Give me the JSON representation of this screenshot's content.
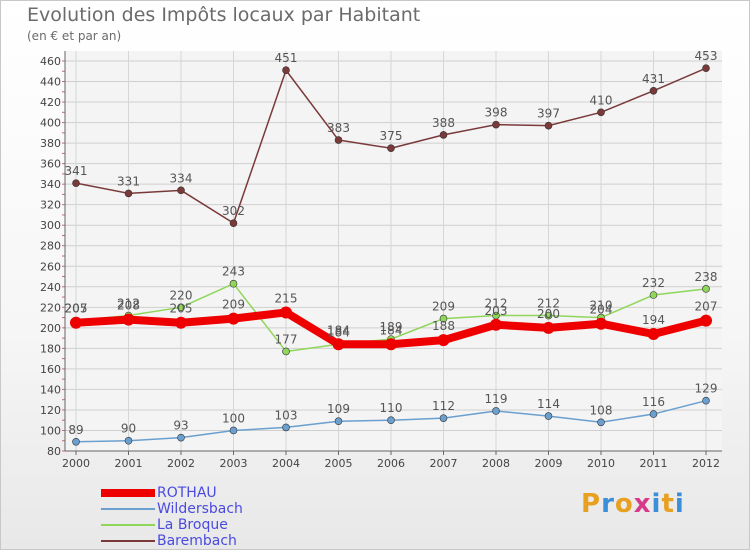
{
  "title": "Evolution des Impôts locaux par Habitant",
  "subtitle": "(en € et par an)",
  "logo_text": "Proxiti",
  "chart_data": {
    "type": "line",
    "categories": [
      "2000",
      "2001",
      "2002",
      "2003",
      "2004",
      "2005",
      "2006",
      "2007",
      "2008",
      "2009",
      "2010",
      "2011",
      "2012"
    ],
    "ylim": [
      80,
      460
    ],
    "yticks": [
      80,
      100,
      120,
      140,
      160,
      180,
      200,
      220,
      240,
      260,
      280,
      300,
      320,
      340,
      360,
      380,
      400,
      420,
      440,
      460
    ],
    "grid": true,
    "legend_placement": "bottom-left",
    "series": [
      {
        "name": "ROTHAU",
        "color": "#ee0000",
        "values": [
          205,
          208,
          205,
          209,
          215,
          184,
          184,
          188,
          203,
          200,
          204,
          194,
          207
        ]
      },
      {
        "name": "Wildersbach",
        "color": "#6a9fcf",
        "values": [
          89,
          90,
          93,
          100,
          103,
          109,
          110,
          112,
          119,
          114,
          108,
          116,
          129
        ]
      },
      {
        "name": "La Broque",
        "color": "#8fd65a",
        "values": [
          207,
          212,
          220,
          243,
          177,
          184,
          189,
          209,
          212,
          212,
          210,
          232,
          238
        ]
      },
      {
        "name": "Barembach",
        "color": "#7a3a3a",
        "values": [
          341,
          331,
          334,
          302,
          451,
          383,
          375,
          388,
          398,
          397,
          410,
          431,
          453
        ]
      }
    ]
  }
}
